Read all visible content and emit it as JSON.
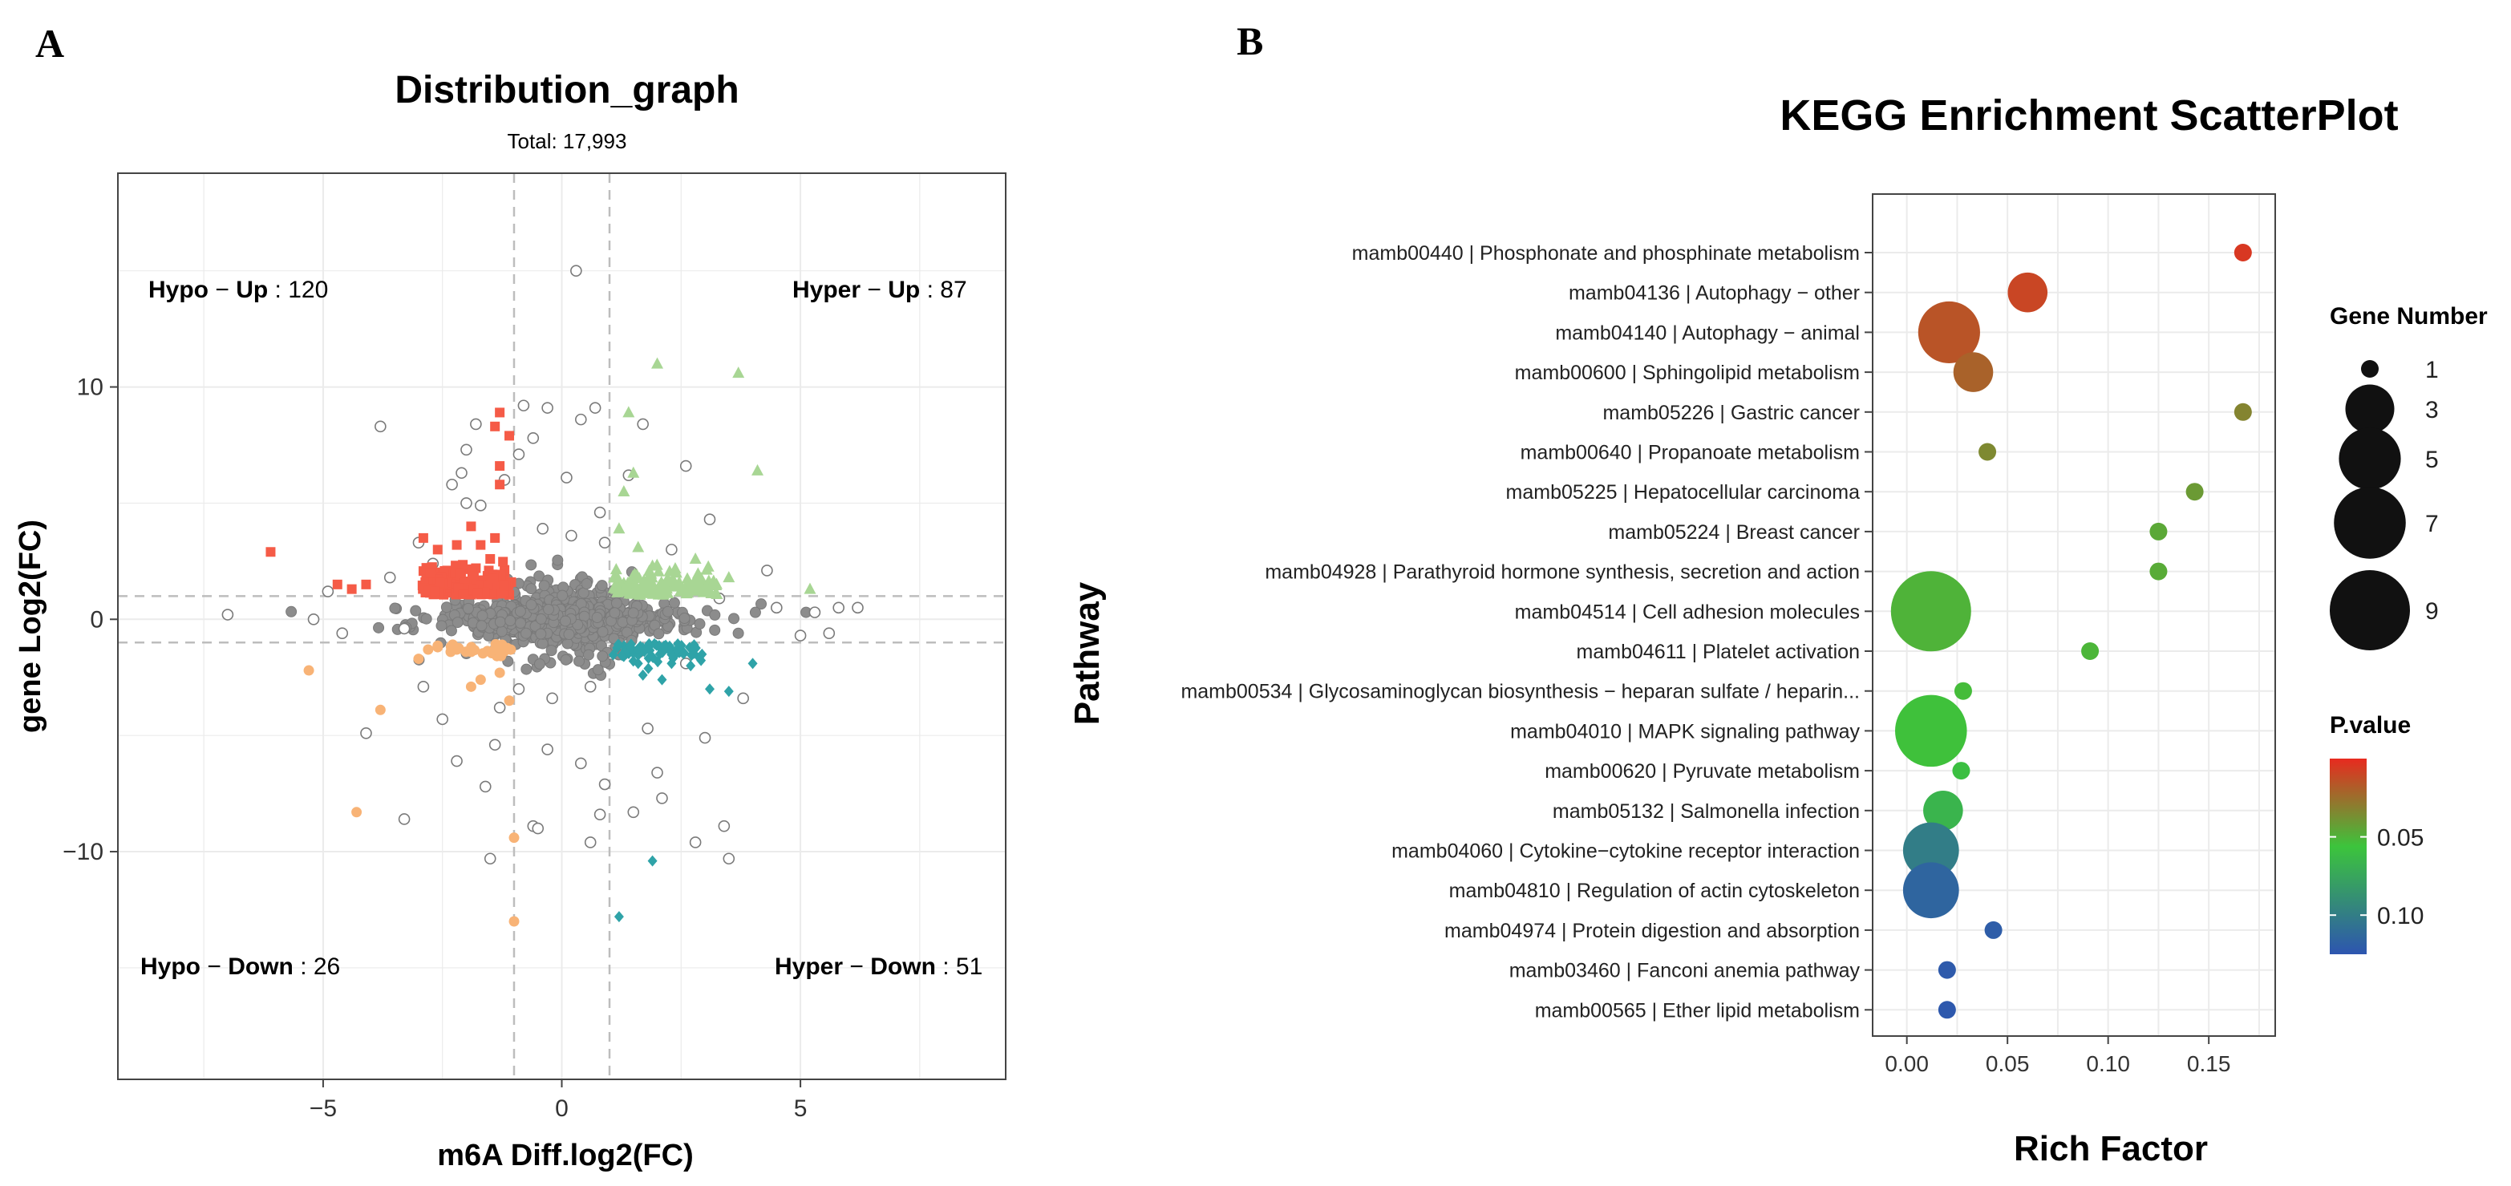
{
  "colors": {
    "hypo_up": "#f55b47",
    "hyper_up": "#a8d694",
    "hypo_down": "#f8b376",
    "hyper_down": "#2fa3a8",
    "nonsig_fill": "#8c8c8c",
    "nonsig_stroke": "#7a7a7a",
    "grid": "#ebebeb",
    "threshold_line": "#bdbdbd",
    "p_gradient": [
      "#e82a1f",
      "#3cc43c",
      "#2d55b0"
    ]
  },
  "chart_data": [
    {
      "type": "scatter",
      "panel_label": "A",
      "title": "Distribution_graph",
      "subtitle": "Total: 17,993",
      "xlabel": "m6A Diff.log2(FC)",
      "ylabel": "gene Log2(FC)",
      "xlim": [
        -9.3,
        9.3
      ],
      "ylim": [
        -19.8,
        19.2
      ],
      "xticks": [
        -5,
        0,
        5
      ],
      "yticks": [
        -10,
        0,
        10
      ],
      "thresholds": {
        "x": [
          -1,
          1
        ],
        "y": [
          -1,
          1
        ]
      },
      "quadrants": [
        {
          "group": "Hypo",
          "direction": "Up",
          "count": 120,
          "position": "top-left"
        },
        {
          "group": "Hyper",
          "direction": "Up",
          "count": 87,
          "position": "top-right"
        },
        {
          "group": "Hypo",
          "direction": "Down",
          "count": 26,
          "position": "bottom-left"
        },
        {
          "group": "Hyper",
          "direction": "Down",
          "count": 51,
          "position": "bottom-right"
        }
      ],
      "highlight_points": {
        "hypo_up": [
          [
            -6.1,
            2.9
          ],
          [
            -4.7,
            1.5
          ],
          [
            -4.4,
            1.3
          ],
          [
            -4.1,
            1.5
          ],
          [
            -2.9,
            3.5
          ],
          [
            -2.6,
            3.0
          ],
          [
            -2.2,
            3.2
          ],
          [
            -1.9,
            4.0
          ],
          [
            -1.7,
            3.2
          ],
          [
            -1.4,
            3.5
          ],
          [
            -1.3,
            5.8
          ],
          [
            -1.3,
            6.6
          ],
          [
            -1.4,
            8.3
          ],
          [
            -1.3,
            8.9
          ],
          [
            -1.1,
            7.9
          ],
          [
            -1.8,
            2.2
          ],
          [
            -2.4,
            2.1
          ],
          [
            -2.7,
            1.6
          ],
          [
            -1.5,
            2.6
          ],
          [
            -1.2,
            1.9
          ]
        ],
        "hyper_up": [
          [
            2.0,
            11.0
          ],
          [
            3.7,
            10.6
          ],
          [
            4.1,
            6.4
          ],
          [
            1.4,
            8.9
          ],
          [
            1.5,
            6.3
          ],
          [
            1.3,
            5.5
          ],
          [
            5.2,
            1.3
          ],
          [
            3.5,
            1.8
          ],
          [
            2.8,
            2.6
          ],
          [
            1.2,
            3.9
          ],
          [
            1.6,
            3.1
          ],
          [
            2.4,
            2.0
          ],
          [
            1.9,
            2.3
          ],
          [
            1.1,
            1.8
          ]
        ],
        "hypo_down": [
          [
            -5.3,
            -2.2
          ],
          [
            -4.3,
            -8.3
          ],
          [
            -3.8,
            -3.9
          ],
          [
            -3.0,
            -1.7
          ],
          [
            -2.6,
            -1.2
          ],
          [
            -2.2,
            -1.3
          ],
          [
            -1.9,
            -2.9
          ],
          [
            -1.7,
            -2.6
          ],
          [
            -1.3,
            -2.3
          ],
          [
            -1.1,
            -3.5
          ],
          [
            -1.0,
            -9.4
          ],
          [
            -1.0,
            -13.0
          ],
          [
            -1.9,
            -1.4
          ],
          [
            -2.8,
            -1.3
          ]
        ],
        "hyper_down": [
          [
            1.2,
            -12.8
          ],
          [
            1.9,
            -10.4
          ],
          [
            1.5,
            -1.4
          ],
          [
            1.7,
            -2.4
          ],
          [
            2.1,
            -2.6
          ],
          [
            2.3,
            -1.9
          ],
          [
            2.7,
            -2.0
          ],
          [
            3.1,
            -3.0
          ],
          [
            3.5,
            -3.1
          ],
          [
            4.0,
            -1.9
          ],
          [
            1.3,
            -1.6
          ],
          [
            1.6,
            -1.9
          ]
        ]
      },
      "outlier_points": [
        [
          -7.0,
          0.2
        ],
        [
          -5.2,
          0.0
        ],
        [
          -4.9,
          1.2
        ],
        [
          -4.1,
          -4.9
        ],
        [
          -3.8,
          8.3
        ],
        [
          -3.3,
          -8.6
        ],
        [
          -3.0,
          3.3
        ],
        [
          -2.9,
          -2.9
        ],
        [
          -2.3,
          5.8
        ],
        [
          -2.2,
          -6.1
        ],
        [
          -2.1,
          6.3
        ],
        [
          -2.0,
          7.3
        ],
        [
          -1.8,
          8.4
        ],
        [
          -1.7,
          4.9
        ],
        [
          -1.6,
          -7.2
        ],
        [
          -1.5,
          -10.3
        ],
        [
          -1.4,
          -5.4
        ],
        [
          -1.2,
          6.0
        ],
        [
          -0.9,
          7.1
        ],
        [
          -0.8,
          9.2
        ],
        [
          -0.6,
          7.8
        ],
        [
          -0.6,
          -8.9
        ],
        [
          -0.5,
          -9.0
        ],
        [
          -0.3,
          9.1
        ],
        [
          -0.3,
          -5.6
        ],
        [
          0.1,
          6.1
        ],
        [
          0.3,
          15.0
        ],
        [
          0.4,
          8.6
        ],
        [
          0.4,
          -6.2
        ],
        [
          0.6,
          -9.6
        ],
        [
          0.7,
          9.1
        ],
        [
          0.8,
          -8.4
        ],
        [
          0.8,
          4.6
        ],
        [
          0.9,
          -7.1
        ],
        [
          1.5,
          -8.3
        ],
        [
          1.7,
          8.4
        ],
        [
          2.0,
          -6.6
        ],
        [
          2.1,
          -7.7
        ],
        [
          2.6,
          6.6
        ],
        [
          2.8,
          -9.6
        ],
        [
          3.1,
          4.3
        ],
        [
          3.4,
          -8.9
        ],
        [
          3.5,
          -10.3
        ],
        [
          3.8,
          -3.4
        ],
        [
          4.3,
          2.1
        ],
        [
          4.5,
          0.5
        ],
        [
          5.0,
          -0.7
        ],
        [
          5.3,
          0.3
        ],
        [
          5.6,
          -0.6
        ],
        [
          5.8,
          0.5
        ],
        [
          6.2,
          0.5
        ],
        [
          -4.6,
          -0.6
        ],
        [
          -3.6,
          1.8
        ],
        [
          -2.5,
          -4.3
        ],
        [
          -2.0,
          5.0
        ],
        [
          1.4,
          6.2
        ],
        [
          2.3,
          3.0
        ],
        [
          3.0,
          -5.1
        ],
        [
          1.8,
          -4.7
        ],
        [
          -1.3,
          -3.8
        ],
        [
          -0.2,
          -3.4
        ],
        [
          0.2,
          3.6
        ],
        [
          -0.4,
          3.9
        ],
        [
          0.9,
          3.3
        ],
        [
          -0.9,
          -3.0
        ],
        [
          0.6,
          -2.9
        ],
        [
          -2.7,
          2.4
        ],
        [
          2.6,
          -1.9
        ],
        [
          3.3,
          0.9
        ],
        [
          -3.3,
          -0.4
        ]
      ]
    },
    {
      "type": "scatter",
      "panel_label": "B",
      "title": "KEGG Enrichment ScatterPlot",
      "xlabel": "Rich Factor",
      "ylabel": "Pathway",
      "xlim": [
        -0.017,
        0.183
      ],
      "xticks": [
        0.0,
        0.05,
        0.1,
        0.15
      ],
      "xtick_labels": [
        "0.00",
        "0.05",
        "0.10",
        "0.15"
      ],
      "pathways": [
        {
          "label": "mamb00440 | Phosphonate and phosphinate metabolism",
          "rich_factor": 0.167,
          "gene_number": 1,
          "p_value": 0.005
        },
        {
          "label": "mamb04136 | Autophagy − other",
          "rich_factor": 0.06,
          "gene_number": 2,
          "p_value": 0.01
        },
        {
          "label": "mamb04140 | Autophagy − animal",
          "rich_factor": 0.021,
          "gene_number": 5,
          "p_value": 0.015
        },
        {
          "label": "mamb00600 | Sphingolipid metabolism",
          "rich_factor": 0.033,
          "gene_number": 2,
          "p_value": 0.02
        },
        {
          "label": "mamb05226 | Gastric cancer",
          "rich_factor": 0.167,
          "gene_number": 1,
          "p_value": 0.032
        },
        {
          "label": "mamb00640 | Propanoate metabolism",
          "rich_factor": 0.04,
          "gene_number": 1,
          "p_value": 0.034
        },
        {
          "label": "mamb05225 | Hepatocellular carcinoma",
          "rich_factor": 0.143,
          "gene_number": 1,
          "p_value": 0.04
        },
        {
          "label": "mamb05224 | Breast cancer",
          "rich_factor": 0.125,
          "gene_number": 1,
          "p_value": 0.045
        },
        {
          "label": "mamb04928 | Parathyroid hormone synthesis, secretion and action",
          "rich_factor": 0.125,
          "gene_number": 1,
          "p_value": 0.046
        },
        {
          "label": "mamb04514 | Cell adhesion molecules",
          "rich_factor": 0.012,
          "gene_number": 9,
          "p_value": 0.049
        },
        {
          "label": "mamb04611 | Platelet activation",
          "rich_factor": 0.091,
          "gene_number": 1,
          "p_value": 0.05
        },
        {
          "label": "mamb00534 | Glycosaminoglycan biosynthesis − heparan sulfate / heparin...",
          "rich_factor": 0.028,
          "gene_number": 1,
          "p_value": 0.052
        },
        {
          "label": "mamb04010 | MAPK signaling pathway",
          "rich_factor": 0.012,
          "gene_number": 7,
          "p_value": 0.054
        },
        {
          "label": "mamb00620 | Pyruvate metabolism",
          "rich_factor": 0.027,
          "gene_number": 1,
          "p_value": 0.058
        },
        {
          "label": "mamb05132 | Salmonella infection",
          "rich_factor": 0.018,
          "gene_number": 2,
          "p_value": 0.065
        },
        {
          "label": "mamb04060 | Cytokine−cytokine receptor interaction",
          "rich_factor": 0.012,
          "gene_number": 4,
          "p_value": 0.1
        },
        {
          "label": "mamb04810 | Regulation of actin cytoskeleton",
          "rich_factor": 0.012,
          "gene_number": 4,
          "p_value": 0.115
        },
        {
          "label": "mamb04974 | Protein digestion and absorption",
          "rich_factor": 0.043,
          "gene_number": 1,
          "p_value": 0.12
        },
        {
          "label": "mamb03460 | Fanconi anemia pathway",
          "rich_factor": 0.02,
          "gene_number": 1,
          "p_value": 0.122
        },
        {
          "label": "mamb00565 | Ether lipid metabolism",
          "rich_factor": 0.02,
          "gene_number": 1,
          "p_value": 0.123
        }
      ],
      "size_legend": {
        "title": "Gene Number",
        "values": [
          1,
          3,
          5,
          7,
          9
        ]
      },
      "color_legend": {
        "title": "P.value",
        "range": [
          0.0,
          0.125
        ],
        "ticks": [
          0.05,
          0.1
        ],
        "tick_labels": [
          "0.05",
          "0.10"
        ],
        "low_color": "#e82a1f",
        "mid_color": "#3cc43c",
        "high_color": "#2d55b0"
      }
    }
  ]
}
